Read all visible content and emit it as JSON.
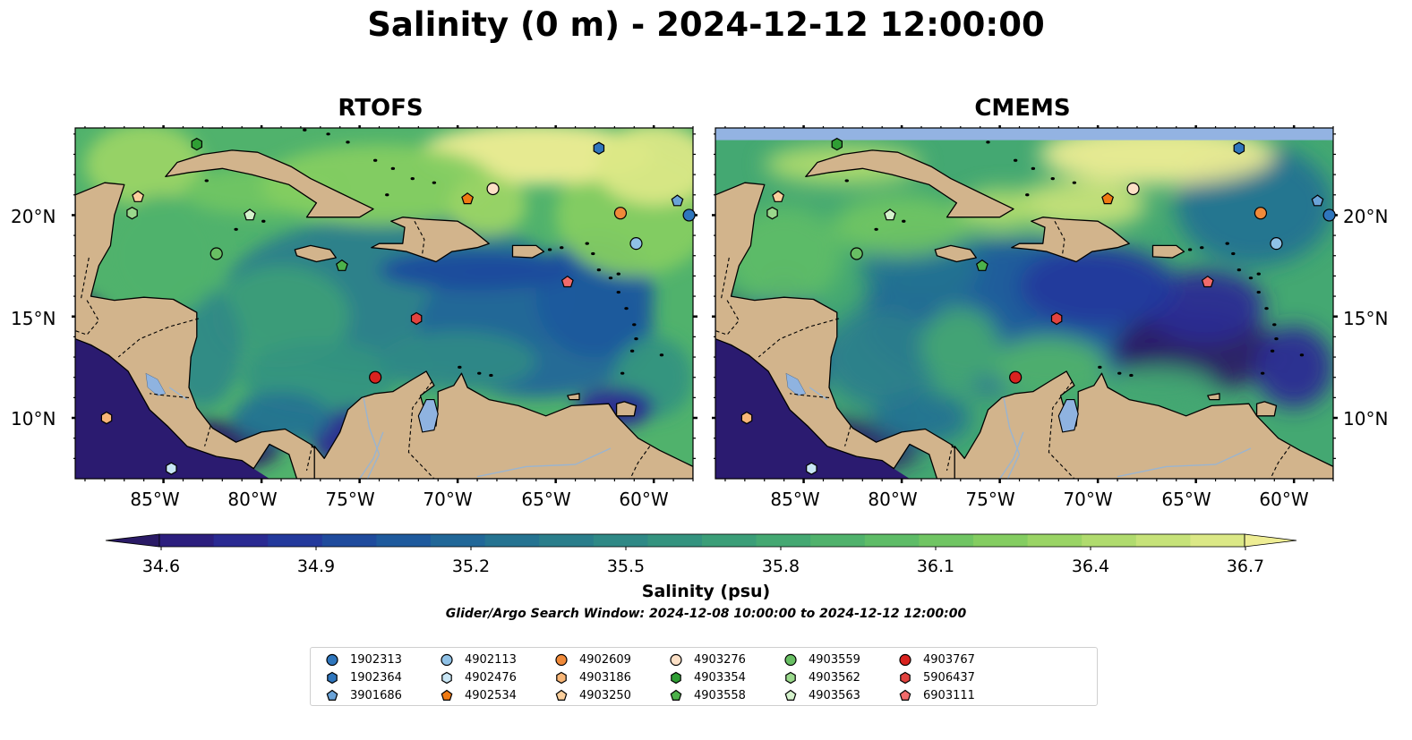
{
  "title": "Salinity (0 m) - 2024-12-12 12:00:00",
  "panels": [
    {
      "title": "RTOFS"
    },
    {
      "title": "CMEMS"
    }
  ],
  "map": {
    "lon_range": [
      -89.5,
      -58.0
    ],
    "lat_range": [
      7.0,
      24.3
    ],
    "lon_ticks": [
      {
        "value": -85,
        "label": "85°W"
      },
      {
        "value": -80,
        "label": "80°W"
      },
      {
        "value": -75,
        "label": "75°W"
      },
      {
        "value": -70,
        "label": "70°W"
      },
      {
        "value": -65,
        "label": "65°W"
      },
      {
        "value": -60,
        "label": "60°W"
      }
    ],
    "lat_ticks": [
      {
        "value": 20,
        "label": "20°N"
      },
      {
        "value": 15,
        "label": "15°N"
      },
      {
        "value": 10,
        "label": "10°N"
      }
    ],
    "colors": {
      "land": "#d2b48c",
      "lake": "#8fb3e0",
      "ocean": "#41b06f",
      "pacific": "#2b1b70"
    }
  },
  "colorbar": {
    "label": "Salinity (psu)",
    "min": 34.6,
    "max": 36.7,
    "ticks": [
      "34.6",
      "34.9",
      "35.2",
      "35.5",
      "35.8",
      "36.1",
      "36.4",
      "36.7"
    ],
    "colors": [
      "#2a1a66",
      "#2c1e7e",
      "#2a2a92",
      "#23399c",
      "#1f4b9d",
      "#1e5a9d",
      "#216798",
      "#257391",
      "#2a7e8b",
      "#2f8986",
      "#34937f",
      "#3b9e78",
      "#44a872",
      "#50b26c",
      "#5ebc67",
      "#70c563",
      "#84cd61",
      "#9ad465",
      "#b0db6e",
      "#c6e279",
      "#dbe886",
      "#eeed94"
    ]
  },
  "search_window": "Glider/Argo Search Window: 2024-12-08 10:00:00 to 2024-12-12 12:00:00",
  "floats": [
    {
      "id": "1902313",
      "marker": "circle",
      "color": "#2f76bd",
      "lon": -58.2,
      "lat": 20.0
    },
    {
      "id": "1902364",
      "marker": "hexagon",
      "color": "#2f76bd",
      "lon": -62.8,
      "lat": 23.3
    },
    {
      "id": "3901686",
      "marker": "pentagon",
      "color": "#6aa3d8",
      "lon": -58.8,
      "lat": 20.7
    },
    {
      "id": "4902113",
      "marker": "circle",
      "color": "#8fc1e6",
      "lon": -60.9,
      "lat": 18.6
    },
    {
      "id": "4902476",
      "marker": "hexagon",
      "color": "#c9e6f5",
      "lon": -84.6,
      "lat": 7.5
    },
    {
      "id": "4902534",
      "marker": "pentagon",
      "color": "#f07a12",
      "lon": -69.5,
      "lat": 20.8
    },
    {
      "id": "4902609",
      "marker": "circle",
      "color": "#f08a3a",
      "lon": -61.7,
      "lat": 20.1
    },
    {
      "id": "4903186",
      "marker": "hexagon",
      "color": "#f8b677",
      "lon": -87.9,
      "lat": 10.0
    },
    {
      "id": "4903250",
      "marker": "pentagon",
      "color": "#fbcf9c",
      "lon": -86.3,
      "lat": 20.9
    },
    {
      "id": "4903276",
      "marker": "circle",
      "color": "#fde0c6",
      "lon": -68.2,
      "lat": 21.3
    },
    {
      "id": "4903354",
      "marker": "hexagon",
      "color": "#2f9e34",
      "lon": -83.3,
      "lat": 23.5
    },
    {
      "id": "4903558",
      "marker": "pentagon",
      "color": "#4cb14a",
      "lon": -75.9,
      "lat": 17.5
    },
    {
      "id": "4903559",
      "marker": "circle",
      "color": "#68bf63",
      "lon": -82.3,
      "lat": 18.1
    },
    {
      "id": "4903562",
      "marker": "hexagon",
      "color": "#9ad98c",
      "lon": -86.6,
      "lat": 20.1
    },
    {
      "id": "4903563",
      "marker": "pentagon",
      "color": "#d5f2cc",
      "lon": -80.6,
      "lat": 20.0
    },
    {
      "id": "4903767",
      "marker": "circle",
      "color": "#d9221f",
      "lon": -74.2,
      "lat": 12.0
    },
    {
      "id": "5906437",
      "marker": "hexagon",
      "color": "#e2433f",
      "lon": -72.1,
      "lat": 14.9
    },
    {
      "id": "6903111",
      "marker": "pentagon",
      "color": "#f26b6b",
      "lon": -64.4,
      "lat": 16.7
    }
  ]
}
